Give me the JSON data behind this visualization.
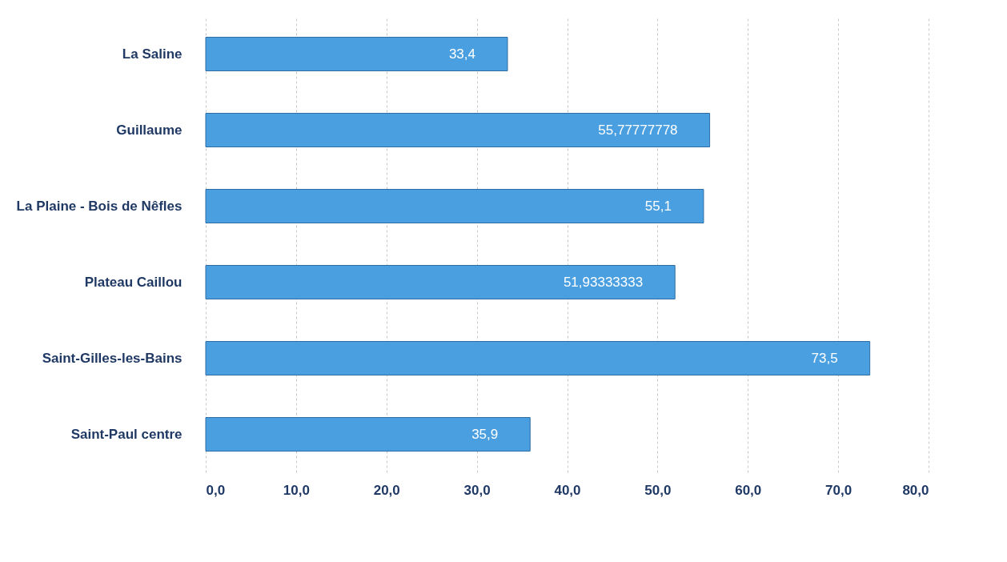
{
  "chart_data": {
    "type": "bar",
    "orientation": "horizontal",
    "categories": [
      "La Saline",
      "Guillaume",
      "La Plaine - Bois de Nêfles",
      "Plateau Caillou",
      "Saint-Gilles-les-Bains",
      "Saint-Paul centre"
    ],
    "values": [
      33.4,
      55.77777778,
      55.1,
      51.93333333,
      73.5,
      35.9
    ],
    "value_labels": [
      "33,4",
      "55,77777778",
      "55,1",
      "51,93333333",
      "73,5",
      "35,9"
    ],
    "color": "#4a9fe0",
    "xlim": [
      0,
      80
    ],
    "xticks": [
      {
        "value": 0,
        "label": "0,0"
      },
      {
        "value": 10,
        "label": "10,0"
      },
      {
        "value": 20,
        "label": "20,0"
      },
      {
        "value": 30,
        "label": "30,0"
      },
      {
        "value": 40,
        "label": "40,0"
      },
      {
        "value": 50,
        "label": "50,0"
      },
      {
        "value": 60,
        "label": "60,0"
      },
      {
        "value": 70,
        "label": "70,0"
      },
      {
        "value": 80,
        "label": "80,0"
      }
    ],
    "grid": "x"
  }
}
